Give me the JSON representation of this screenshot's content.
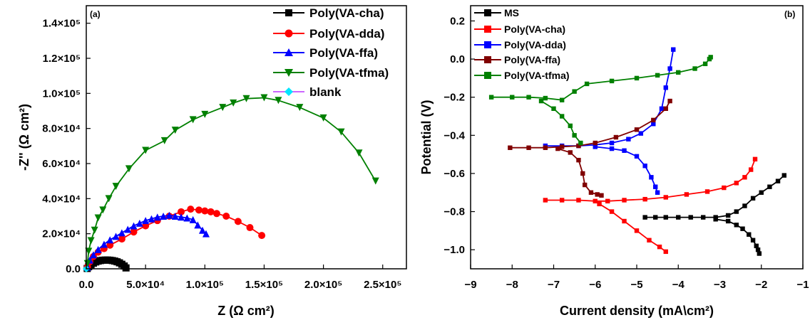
{
  "chart_data": [
    {
      "type": "line",
      "panel_label": "(a)",
      "xlabel": "Z (Ω cm²)",
      "ylabel": "-Z'' (Ω cm²)",
      "xlim": [
        0,
        270000
      ],
      "ylim": [
        0,
        150000
      ],
      "x_ticks": [
        0,
        50000,
        100000,
        150000,
        200000,
        250000
      ],
      "x_tick_labels": [
        "0.0",
        "5.0×10⁴",
        "1.0×10⁵",
        "1.5×10⁵",
        "2.0×10⁵",
        "2.5×10⁵"
      ],
      "y_ticks": [
        0,
        20000,
        40000,
        60000,
        80000,
        100000,
        120000,
        140000
      ],
      "y_tick_labels": [
        "0.0",
        "2.0×10⁴",
        "4.0×10⁴",
        "6.0×10⁴",
        "8.0×10⁴",
        "1.0×10⁵",
        "1.2×10⁵",
        "1.4×10⁵"
      ],
      "legend_position": "top-right",
      "series": [
        {
          "name": "Poly(VA-cha)",
          "color": "#000000",
          "marker": "square",
          "points": [
            [
              800,
              200
            ],
            [
              2000,
              1200
            ],
            [
              4000,
              2300
            ],
            [
              6000,
              3200
            ],
            [
              8000,
              3900
            ],
            [
              10000,
              4400
            ],
            [
              12000,
              4700
            ],
            [
              14000,
              4900
            ],
            [
              16000,
              5000
            ],
            [
              18000,
              5000
            ],
            [
              20000,
              4900
            ],
            [
              22000,
              4700
            ],
            [
              24000,
              4400
            ],
            [
              26000,
              4000
            ],
            [
              28000,
              3400
            ],
            [
              30000,
              2600
            ],
            [
              32000,
              1600
            ],
            [
              33500,
              500
            ]
          ]
        },
        {
          "name": "Poly(VA-dda)",
          "color": "#ff0000",
          "marker": "circle",
          "points": [
            [
              1000,
              1000
            ],
            [
              3000,
              4000
            ],
            [
              6000,
              7000
            ],
            [
              10000,
              9500
            ],
            [
              15000,
              11500
            ],
            [
              20000,
              13500
            ],
            [
              30000,
              17000
            ],
            [
              40000,
              21000
            ],
            [
              50000,
              24500
            ],
            [
              60000,
              27500
            ],
            [
              70000,
              30000
            ],
            [
              80000,
              32500
            ],
            [
              88000,
              34000
            ],
            [
              95000,
              33500
            ],
            [
              100000,
              33000
            ],
            [
              105000,
              32500
            ],
            [
              110000,
              31500
            ],
            [
              118000,
              30000
            ],
            [
              128000,
              27000
            ],
            [
              138000,
              23500
            ],
            [
              148000,
              19000
            ]
          ]
        },
        {
          "name": "Poly(VA-ffa)",
          "color": "#0000ff",
          "marker": "triangle-up",
          "points": [
            [
              1000,
              1000
            ],
            [
              3000,
              5000
            ],
            [
              6000,
              8000
            ],
            [
              10000,
              11000
            ],
            [
              15000,
              14000
            ],
            [
              20000,
              16500
            ],
            [
              25000,
              18500
            ],
            [
              30000,
              20500
            ],
            [
              35000,
              22500
            ],
            [
              40000,
              24500
            ],
            [
              45000,
              26000
            ],
            [
              50000,
              27500
            ],
            [
              55000,
              28500
            ],
            [
              60000,
              29500
            ],
            [
              65000,
              30000
            ],
            [
              70000,
              30500
            ],
            [
              75000,
              30000
            ],
            [
              80000,
              29500
            ],
            [
              85000,
              29000
            ],
            [
              90000,
              28000
            ],
            [
              94000,
              25000
            ],
            [
              98000,
              22000
            ],
            [
              101000,
              20000
            ]
          ]
        },
        {
          "name": "Poly(VA-tfma)",
          "color": "#008000",
          "marker": "triangle-down",
          "points": [
            [
              1000,
              3000
            ],
            [
              2000,
              10000
            ],
            [
              4000,
              16000
            ],
            [
              7000,
              22000
            ],
            [
              10000,
              29000
            ],
            [
              14000,
              33500
            ],
            [
              19000,
              40000
            ],
            [
              25000,
              47000
            ],
            [
              36000,
              57000
            ],
            [
              50000,
              67500
            ],
            [
              66000,
              73000
            ],
            [
              75000,
              79000
            ],
            [
              90000,
              85000
            ],
            [
              100000,
              88000
            ],
            [
              115000,
              92000
            ],
            [
              124000,
              94500
            ],
            [
              135000,
              97000
            ],
            [
              150000,
              97500
            ],
            [
              162000,
              96000
            ],
            [
              180000,
              92000
            ],
            [
              200000,
              86000
            ],
            [
              215000,
              78000
            ],
            [
              230000,
              66000
            ],
            [
              244000,
              50000
            ]
          ]
        },
        {
          "name": "blank",
          "color": "#00e5ff",
          "marker": "diamond",
          "points": [
            [
              0,
              0
            ]
          ]
        }
      ]
    },
    {
      "type": "line",
      "panel_label": "(b)",
      "xlabel": "Current density (mA\\cm²)",
      "ylabel": "Potential (V)",
      "xlim": [
        -9,
        -1
      ],
      "ylim": [
        -1.1,
        0.28
      ],
      "x_ticks": [
        -9,
        -8,
        -7,
        -6,
        -5,
        -4,
        -3,
        -2,
        -1
      ],
      "x_tick_labels": [
        "−9",
        "−8",
        "−7",
        "−6",
        "−5",
        "−4",
        "−3",
        "−2",
        "−1"
      ],
      "y_ticks": [
        -1.0,
        -0.8,
        -0.6,
        -0.4,
        -0.2,
        0.0,
        0.2
      ],
      "y_tick_labels": [
        "−1.0",
        "−0.8",
        "−0.6",
        "−0.4",
        "−0.2",
        "0.0",
        "0.2"
      ],
      "legend_position": "top-left",
      "series": [
        {
          "name": "MS",
          "color": "#000000",
          "marker": "square",
          "points": [
            [
              -4.8,
              -0.83
            ],
            [
              -4.55,
              -0.83
            ],
            [
              -4.3,
              -0.83
            ],
            [
              -4.0,
              -0.83
            ],
            [
              -3.7,
              -0.83
            ],
            [
              -3.4,
              -0.83
            ],
            [
              -3.1,
              -0.83
            ],
            [
              -2.8,
              -0.82
            ],
            [
              -2.6,
              -0.8
            ],
            [
              -2.4,
              -0.77
            ],
            [
              -2.2,
              -0.73
            ],
            [
              -2.0,
              -0.7
            ],
            [
              -1.8,
              -0.67
            ],
            [
              -1.6,
              -0.64
            ],
            [
              -1.45,
              -0.61
            ],
            [
              null,
              null
            ],
            [
              -3.1,
              -0.84
            ],
            [
              -2.8,
              -0.85
            ],
            [
              -2.6,
              -0.87
            ],
            [
              -2.45,
              -0.89
            ],
            [
              -2.3,
              -0.92
            ],
            [
              -2.2,
              -0.95
            ],
            [
              -2.12,
              -0.98
            ],
            [
              -2.08,
              -1.0
            ],
            [
              -2.05,
              -1.02
            ]
          ]
        },
        {
          "name": "Poly(VA-cha)",
          "color": "#ff0000",
          "marker": "square",
          "points": [
            [
              -7.2,
              -0.74
            ],
            [
              -6.8,
              -0.74
            ],
            [
              -6.4,
              -0.74
            ],
            [
              -6.0,
              -0.745
            ],
            [
              -5.7,
              -0.745
            ],
            [
              -5.3,
              -0.74
            ],
            [
              -4.8,
              -0.735
            ],
            [
              -4.3,
              -0.725
            ],
            [
              -3.8,
              -0.71
            ],
            [
              -3.3,
              -0.695
            ],
            [
              -2.9,
              -0.675
            ],
            [
              -2.6,
              -0.65
            ],
            [
              -2.4,
              -0.62
            ],
            [
              -2.25,
              -0.58
            ],
            [
              -2.15,
              -0.525
            ],
            [
              null,
              null
            ],
            [
              -5.9,
              -0.76
            ],
            [
              -5.6,
              -0.8
            ],
            [
              -5.3,
              -0.85
            ],
            [
              -5.0,
              -0.9
            ],
            [
              -4.7,
              -0.95
            ],
            [
              -4.45,
              -0.985
            ],
            [
              -4.3,
              -1.01
            ]
          ]
        },
        {
          "name": "Poly(VA-dda)",
          "color": "#0000ff",
          "marker": "square",
          "points": [
            [
              -7.2,
              -0.455
            ],
            [
              -6.8,
              -0.455
            ],
            [
              -6.4,
              -0.455
            ],
            [
              -6.0,
              -0.45
            ],
            [
              -5.6,
              -0.44
            ],
            [
              -5.2,
              -0.42
            ],
            [
              -4.9,
              -0.39
            ],
            [
              -4.6,
              -0.34
            ],
            [
              -4.4,
              -0.26
            ],
            [
              -4.3,
              -0.15
            ],
            [
              -4.2,
              -0.05
            ],
            [
              -4.12,
              0.05
            ],
            [
              null,
              null
            ],
            [
              -6.0,
              -0.46
            ],
            [
              -5.6,
              -0.47
            ],
            [
              -5.3,
              -0.48
            ],
            [
              -5.0,
              -0.51
            ],
            [
              -4.8,
              -0.56
            ],
            [
              -4.65,
              -0.62
            ],
            [
              -4.55,
              -0.67
            ],
            [
              -4.5,
              -0.7
            ]
          ]
        },
        {
          "name": "Poly(VA-ffa)",
          "color": "#800000",
          "marker": "square",
          "points": [
            [
              -8.05,
              -0.465
            ],
            [
              -7.6,
              -0.465
            ],
            [
              -7.2,
              -0.465
            ],
            [
              -6.8,
              -0.46
            ],
            [
              -6.4,
              -0.455
            ],
            [
              -6.0,
              -0.44
            ],
            [
              -5.5,
              -0.41
            ],
            [
              -5.0,
              -0.37
            ],
            [
              -4.6,
              -0.32
            ],
            [
              -4.3,
              -0.26
            ],
            [
              -4.2,
              -0.22
            ],
            [
              null,
              null
            ],
            [
              -6.9,
              -0.47
            ],
            [
              -6.6,
              -0.49
            ],
            [
              -6.4,
              -0.53
            ],
            [
              -6.3,
              -0.6
            ],
            [
              -6.25,
              -0.66
            ],
            [
              -6.1,
              -0.7
            ],
            [
              -5.95,
              -0.71
            ],
            [
              -5.85,
              -0.715
            ]
          ]
        },
        {
          "name": "Poly(VA-tfma)",
          "color": "#008000",
          "marker": "square",
          "points": [
            [
              -8.5,
              -0.2
            ],
            [
              -8.0,
              -0.2
            ],
            [
              -7.6,
              -0.2
            ],
            [
              -7.2,
              -0.205
            ],
            [
              -6.8,
              -0.215
            ],
            [
              -6.5,
              -0.17
            ],
            [
              -6.2,
              -0.13
            ],
            [
              -5.6,
              -0.115
            ],
            [
              -5.0,
              -0.1
            ],
            [
              -4.5,
              -0.085
            ],
            [
              -4.0,
              -0.07
            ],
            [
              -3.6,
              -0.05
            ],
            [
              -3.35,
              -0.025
            ],
            [
              -3.25,
              0.0
            ],
            [
              -3.22,
              0.01
            ],
            [
              null,
              null
            ],
            [
              -7.3,
              -0.22
            ],
            [
              -7.0,
              -0.26
            ],
            [
              -6.8,
              -0.3
            ],
            [
              -6.6,
              -0.35
            ],
            [
              -6.5,
              -0.4
            ],
            [
              -6.35,
              -0.44
            ]
          ]
        }
      ]
    }
  ]
}
